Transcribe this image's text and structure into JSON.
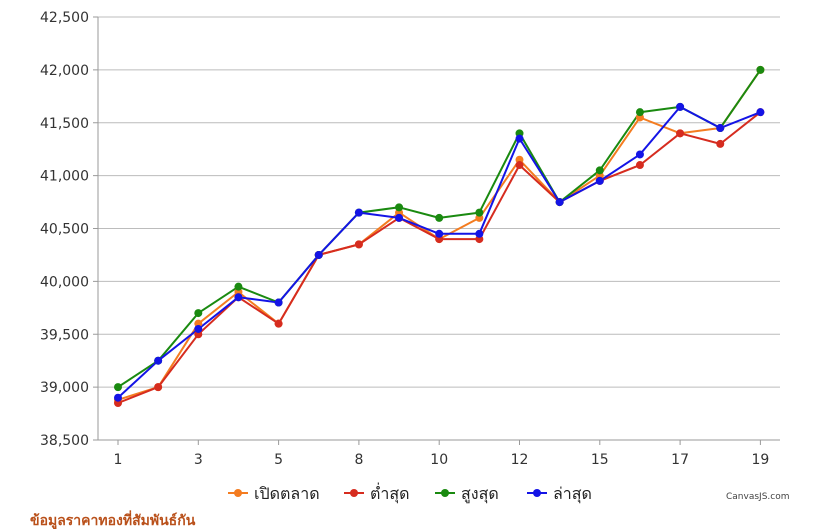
{
  "footer_note": "ข้อมูลราคาทองที่สัมพันธ์กัน",
  "credit": "CanvasJS.com",
  "chart_data": {
    "type": "line",
    "x": [
      "1",
      "2",
      "3",
      "4",
      "5",
      "6",
      "8",
      "9",
      "10",
      "11",
      "12",
      "13",
      "15",
      "16",
      "17",
      "18",
      "19"
    ],
    "x_tick_labels": [
      "1",
      "3",
      "5",
      "8",
      "10",
      "12",
      "15",
      "17",
      "19"
    ],
    "y_tick_labels": [
      "38,500",
      "39,000",
      "39,500",
      "40,000",
      "40,500",
      "41,000",
      "41,500",
      "42,000",
      "42,500"
    ],
    "ylim": [
      38500,
      42500
    ],
    "grid": "horizontal",
    "legend_position": "bottom",
    "series": [
      {
        "name": "เปิดตลาด",
        "color": "#f47c20",
        "values": [
          38880,
          39000,
          39600,
          39900,
          39600,
          40250,
          40350,
          40650,
          40400,
          40600,
          41150,
          40750,
          41000,
          41550,
          41400,
          41450,
          42000
        ]
      },
      {
        "name": "ต่ำสุด",
        "color": "#d62c1f",
        "values": [
          38850,
          39000,
          39500,
          39850,
          39600,
          40250,
          40350,
          40600,
          40400,
          40400,
          41100,
          40750,
          40950,
          41100,
          41400,
          41300,
          41600
        ]
      },
      {
        "name": "สูงสุด",
        "color": "#1a8a10",
        "values": [
          39000,
          39250,
          39700,
          39950,
          39800,
          40250,
          40650,
          40700,
          40600,
          40650,
          41400,
          40750,
          41050,
          41600,
          41650,
          41450,
          42000
        ]
      },
      {
        "name": "ล่าสุด",
        "color": "#1414e6",
        "values": [
          38900,
          39250,
          39550,
          39850,
          39800,
          40250,
          40650,
          40600,
          40450,
          40450,
          41350,
          40750,
          40950,
          41200,
          41650,
          41450,
          41600
        ]
      }
    ]
  }
}
